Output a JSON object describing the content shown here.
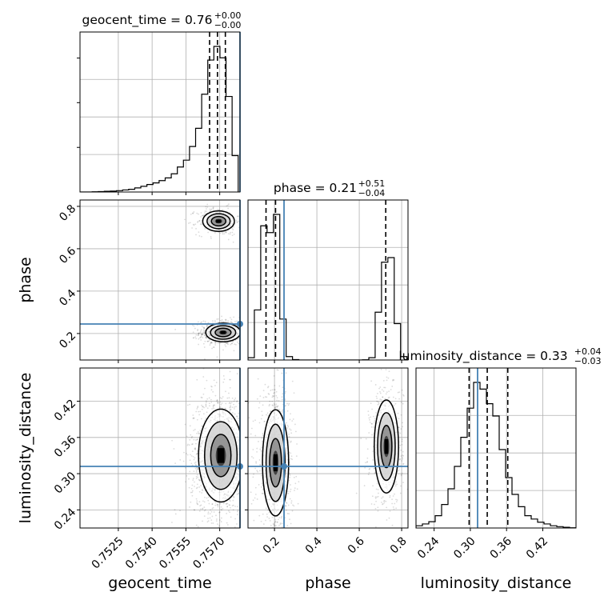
{
  "chart_data": {
    "type": "corner",
    "parameters": [
      "geocent_time",
      "phase",
      "luminosity_distance"
    ],
    "truth": {
      "geocent_time": 0.7579,
      "phase": 0.245,
      "luminosity_distance": 0.312
    },
    "ranges": {
      "geocent_time": [
        0.7508,
        0.7579
      ],
      "phase": [
        0.075,
        0.83
      ],
      "luminosity_distance": [
        0.21,
        0.475
      ]
    },
    "ticks": {
      "geocent_time": [
        "0.7525",
        "0.7540",
        "0.7555",
        "0.7570"
      ],
      "phase": [
        "0.2",
        "0.4",
        "0.6",
        "0.8"
      ],
      "luminosity_distance": [
        "0.24",
        "0.30",
        "0.36",
        "0.42"
      ]
    },
    "titles": {
      "geocent_time": {
        "name": "geocent_time",
        "median": "0.76",
        "plus": "+0.00",
        "minus": "−0.00"
      },
      "phase": {
        "name": "phase",
        "median": "0.21",
        "plus": "+0.51",
        "minus": "−0.04"
      },
      "luminosity_distance": {
        "name": "luminosity_distance",
        "median": "0.33",
        "plus": "+0.04",
        "minus": "−0.03"
      }
    },
    "axis_labels": {
      "x": [
        "geocent_time",
        "phase",
        "luminosity_distance"
      ],
      "y": [
        "phase",
        "luminosity_distance"
      ]
    },
    "quantiles": {
      "geocent_time": [
        0.75655,
        0.7569,
        0.75725
      ],
      "phase": [
        0.16,
        0.205,
        0.725
      ],
      "luminosity_distance": [
        0.298,
        0.328,
        0.362
      ]
    },
    "histograms": {
      "geocent_time": {
        "edges": [
          0.7508,
          0.75107,
          0.75134,
          0.75161,
          0.75188,
          0.75215,
          0.75242,
          0.75269,
          0.75296,
          0.75323,
          0.7535,
          0.75377,
          0.75404,
          0.75431,
          0.75458,
          0.75485,
          0.75512,
          0.75539,
          0.75566,
          0.75593,
          0.7562,
          0.75647,
          0.75674,
          0.75701,
          0.75728,
          0.75755,
          0.75782
        ],
        "counts": [
          0,
          0,
          1,
          2,
          3,
          4,
          6,
          9,
          12,
          18,
          25,
          33,
          40,
          50,
          62,
          80,
          110,
          140,
          200,
          280,
          430,
          580,
          640,
          590,
          420,
          160
        ]
      },
      "phase": {
        "edges": [
          0.075,
          0.105,
          0.135,
          0.165,
          0.195,
          0.225,
          0.255,
          0.285,
          0.315,
          0.345,
          0.375,
          0.405,
          0.435,
          0.465,
          0.495,
          0.525,
          0.555,
          0.585,
          0.615,
          0.645,
          0.675,
          0.705,
          0.735,
          0.765,
          0.795,
          0.825
        ],
        "counts": [
          10,
          220,
          590,
          560,
          640,
          180,
          15,
          2,
          0,
          0,
          0,
          0,
          0,
          0,
          0,
          0,
          0,
          0,
          1,
          10,
          210,
          430,
          450,
          160,
          15
        ]
      },
      "luminosity_distance": {
        "edges": [
          0.21,
          0.2206,
          0.2312,
          0.2418,
          0.2524,
          0.263,
          0.2736,
          0.2842,
          0.2948,
          0.3054,
          0.316,
          0.3266,
          0.3372,
          0.3478,
          0.3584,
          0.369,
          0.3796,
          0.3902,
          0.4008,
          0.4114,
          0.422,
          0.4326,
          0.4432,
          0.4538,
          0.4644,
          0.475
        ],
        "counts": [
          10,
          18,
          28,
          55,
          105,
          175,
          275,
          405,
          535,
          650,
          620,
          555,
          500,
          350,
          225,
          150,
          95,
          55,
          40,
          26,
          18,
          10,
          6,
          3,
          1
        ]
      }
    },
    "clusters": {
      "time_phase": [
        {
          "mx": 0.75715,
          "sx": 0.00035,
          "my": 0.205,
          "sy": 0.02,
          "w": 0.45
        },
        {
          "mx": 0.75695,
          "sx": 0.00032,
          "my": 0.73,
          "sy": 0.022,
          "w": 0.25
        }
      ],
      "time_distance": [
        {
          "mx": 0.75705,
          "sx": 0.00045,
          "my": 0.33,
          "sy": 0.035,
          "w": 1
        }
      ],
      "phase_distance": [
        {
          "mx": 0.205,
          "sx": 0.028,
          "my": 0.318,
          "sy": 0.04,
          "w": 0.62
        },
        {
          "mx": 0.728,
          "sx": 0.026,
          "my": 0.345,
          "sy": 0.035,
          "w": 0.38
        }
      ]
    },
    "truth_color": "#4682b4",
    "line_color": "#000000",
    "grid": true
  }
}
